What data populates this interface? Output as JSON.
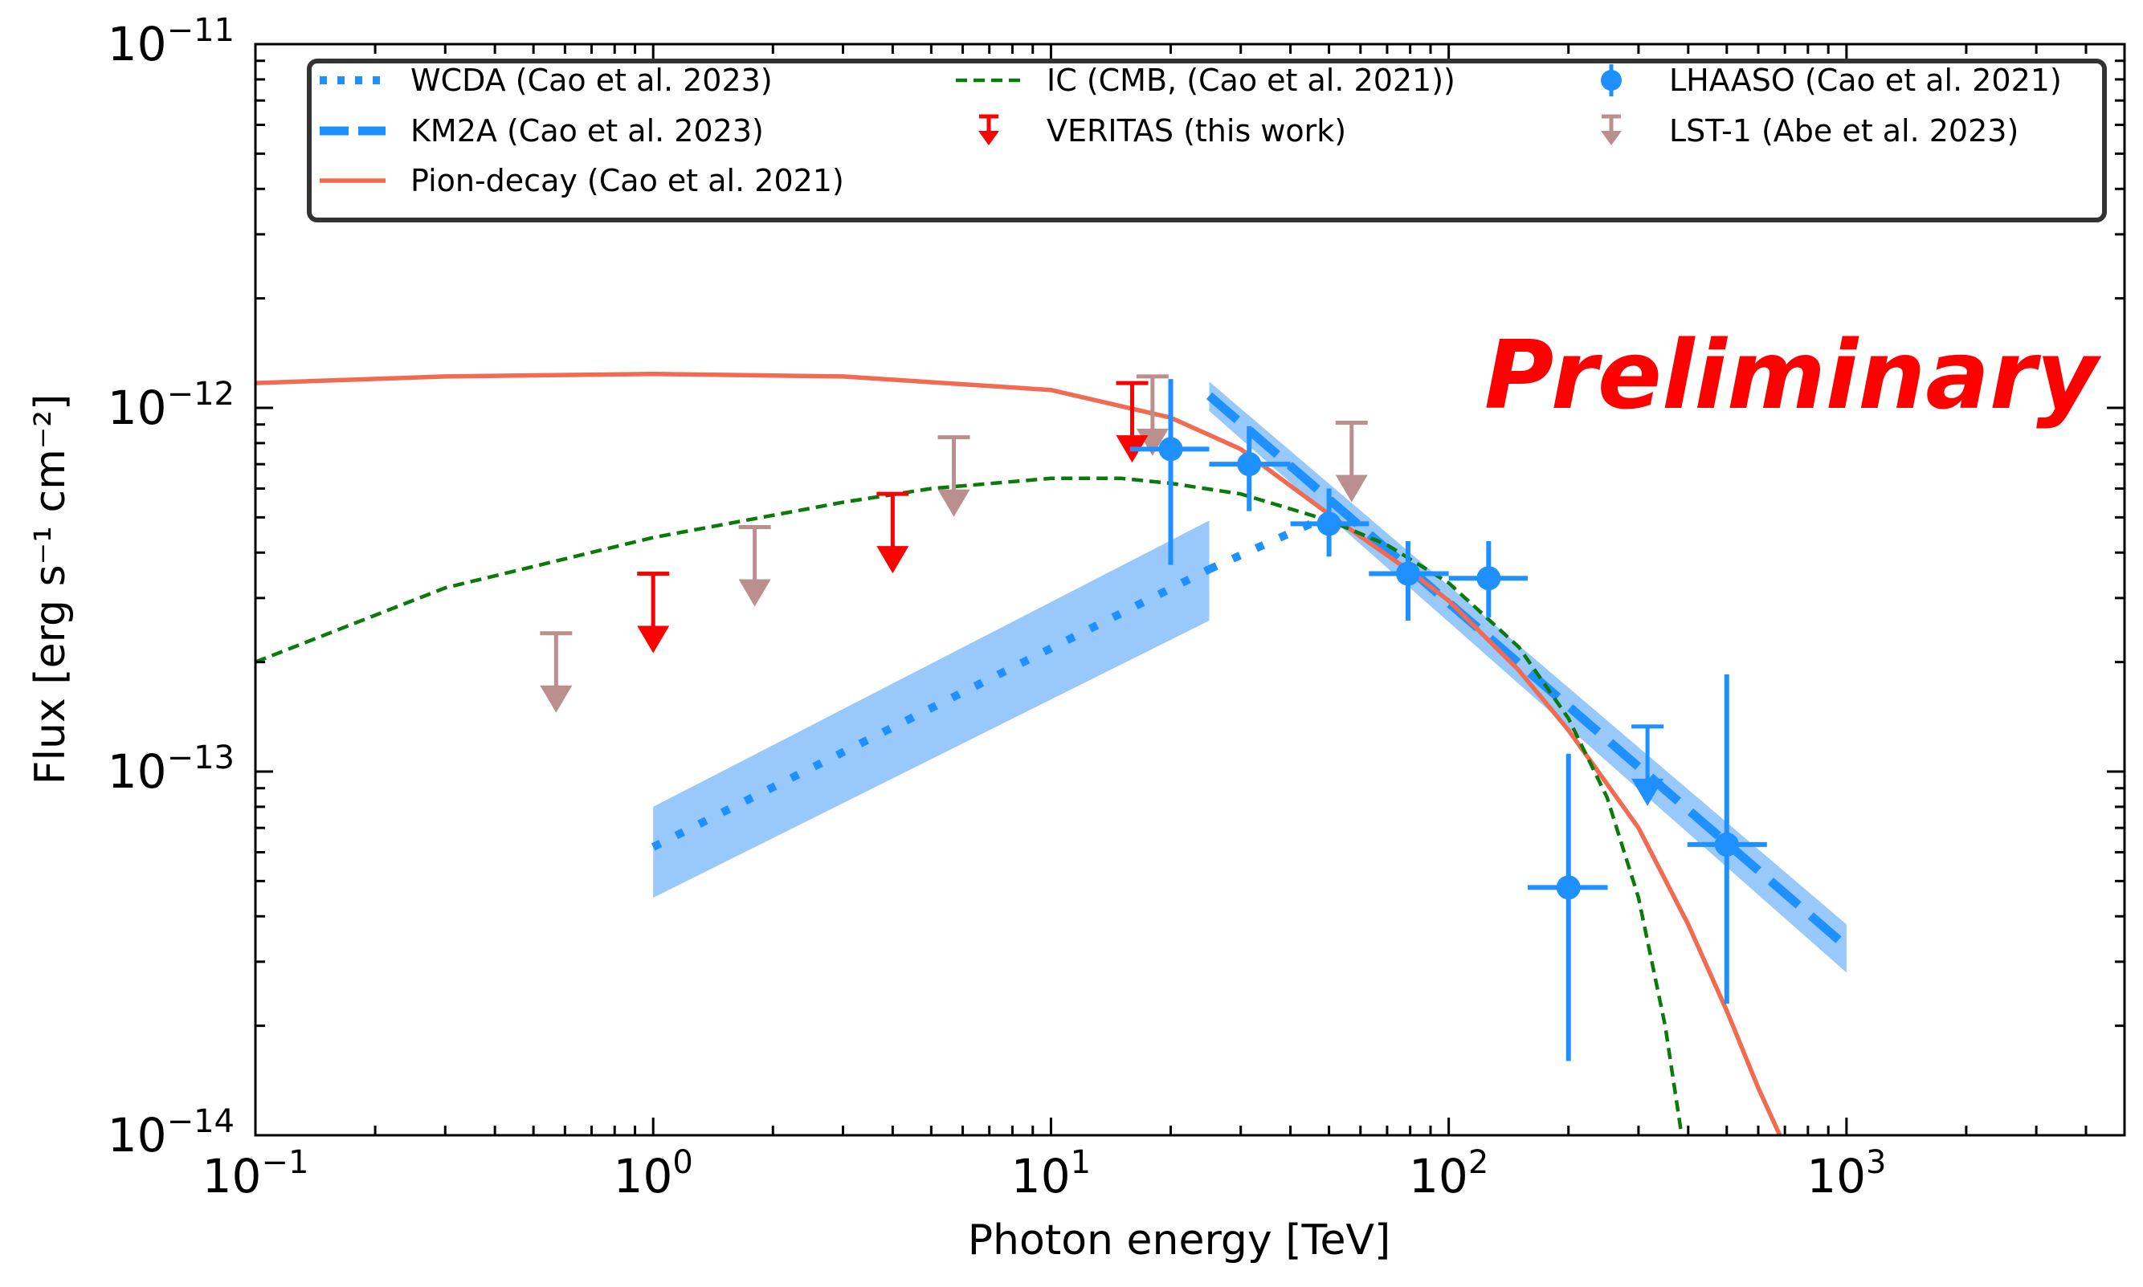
{
  "chart_data": {
    "type": "scatter",
    "xlabel": "Photon energy [TeV]",
    "ylabel": "Flux [erg s⁻¹ cm⁻²]",
    "xscale": "log",
    "yscale": "log",
    "xlim": [
      0.1,
      5000
    ],
    "ylim": [
      1e-14,
      1e-11
    ],
    "x_tick_labels": [
      "10⁻¹",
      "10⁰",
      "10¹",
      "10²",
      "10³"
    ],
    "y_tick_labels": [
      "10⁻¹⁴",
      "10⁻¹³",
      "10⁻¹²",
      "10⁻¹¹"
    ],
    "x_tick_base": "10",
    "x_tick_exponents": [
      "−1",
      "0",
      "1",
      "2",
      "3"
    ],
    "y_tick_base": "10",
    "y_tick_exponents": [
      "−14",
      "−13",
      "−12",
      "−11"
    ],
    "annotation": "Preliminary",
    "annotation_color": "#ff0000",
    "legend_position": "top",
    "series": [
      {
        "name": "WCDA (Cao et al. 2023)",
        "kind": "band-line",
        "style": "dotted",
        "color": "#1e90ff",
        "band_color": "#93c5fb",
        "x": [
          1,
          25
        ],
        "y": [
          6.2e-14,
          3.6e-13
        ],
        "band_low": [
          4.5e-14,
          2.6e-13
        ],
        "band_high": [
          8e-14,
          4.9e-13
        ],
        "extension": {
          "x": [
            25,
            45
          ],
          "y": [
            3.6e-13,
            4.8e-13
          ]
        }
      },
      {
        "name": "KM2A (Cao et al. 2023)",
        "kind": "band-line",
        "style": "dashed",
        "color": "#1e90ff",
        "band_color": "#93c5fb",
        "x": [
          25,
          1000
        ],
        "y": [
          1.08e-12,
          3.3e-14
        ],
        "band_low": [
          9.8e-13,
          2.8e-14
        ],
        "band_high": [
          1.18e-12,
          3.8e-14
        ]
      },
      {
        "name": "Pion-decay (Cao et al. 2021)",
        "kind": "line",
        "style": "solid",
        "color": "#f26a50",
        "x": [
          0.1,
          0.3,
          1,
          3,
          10,
          20,
          30,
          50,
          80,
          100,
          150,
          200,
          300,
          400,
          500,
          600,
          680
        ],
        "y": [
          1.17e-12,
          1.22e-12,
          1.24e-12,
          1.22e-12,
          1.12e-12,
          9.4e-13,
          7.7e-13,
          5.1e-13,
          3.55e-13,
          2.95e-13,
          1.9e-13,
          1.3e-13,
          7e-14,
          3.8e-14,
          2.2e-14,
          1.35e-14,
          1e-14
        ]
      },
      {
        "name": "IC (CMB, (Cao et al. 2021))",
        "kind": "line",
        "style": "dashed-thin",
        "color": "#0a7a0a",
        "x": [
          0.1,
          0.3,
          1,
          3,
          5,
          10,
          15,
          20,
          30,
          50,
          70,
          100,
          150,
          200,
          250,
          300,
          350,
          380,
          385
        ],
        "y": [
          2e-13,
          3.2e-13,
          4.4e-13,
          5.5e-13,
          6e-13,
          6.4e-13,
          6.4e-13,
          6.2e-13,
          5.8e-13,
          4.9e-13,
          4.2e-13,
          3.3e-13,
          2.2e-13,
          1.4e-13,
          8.5e-14,
          4.5e-14,
          2e-14,
          1.1e-14,
          1e-14
        ]
      },
      {
        "name": "VERITAS (this work)",
        "kind": "upper-limits",
        "color": "#ff0000",
        "points": [
          {
            "x": 1.0,
            "y": 3.5e-13
          },
          {
            "x": 4.0,
            "y": 5.8e-13
          },
          {
            "x": 16.0,
            "y": 1.17e-12
          }
        ]
      },
      {
        "name": "LHAASO (Cao et al. 2021)",
        "kind": "errorbar",
        "color": "#1e90ff",
        "points": [
          {
            "x": 20,
            "y": 7.7e-13,
            "xlo": 15.8,
            "xhi": 25,
            "ylo": 3.7e-13,
            "yhi": 1.2e-12
          },
          {
            "x": 31.5,
            "y": 7e-13,
            "xlo": 25,
            "xhi": 40,
            "ylo": 5.2e-13,
            "yhi": 8.9e-13
          },
          {
            "x": 50,
            "y": 4.8e-13,
            "xlo": 40,
            "xhi": 63,
            "ylo": 3.9e-13,
            "yhi": 6e-13
          },
          {
            "x": 79,
            "y": 3.5e-13,
            "xlo": 63,
            "xhi": 100,
            "ylo": 2.6e-13,
            "yhi": 4.3e-13
          },
          {
            "x": 126,
            "y": 3.4e-13,
            "xlo": 100,
            "xhi": 158,
            "ylo": 2.65e-13,
            "yhi": 4.3e-13
          },
          {
            "x": 200,
            "y": 4.8e-14,
            "xlo": 158,
            "xhi": 251,
            "ylo": 1.6e-14,
            "yhi": 1.12e-13
          },
          {
            "x": 500,
            "y": 6.3e-14,
            "xlo": 398,
            "xhi": 631,
            "ylo": 2.3e-14,
            "yhi": 1.85e-13
          }
        ],
        "upper_limits": [
          {
            "x": 316,
            "y": 1.33e-13
          }
        ]
      },
      {
        "name": "LST-1 (Abe et al. 2023)",
        "kind": "upper-limits",
        "color": "#bc8f8f",
        "points": [
          {
            "x": 0.57,
            "y": 2.4e-13
          },
          {
            "x": 1.8,
            "y": 4.7e-13
          },
          {
            "x": 5.7,
            "y": 8.3e-13
          },
          {
            "x": 18.0,
            "y": 1.22e-12
          },
          {
            "x": 57.0,
            "y": 9.1e-13
          }
        ]
      }
    ]
  },
  "legend": {
    "items": [
      {
        "label": "WCDA (Cao et al. 2023)",
        "glyph": "dotted-line",
        "color": "#1e90ff"
      },
      {
        "label": "KM2A (Cao et al. 2023)",
        "glyph": "dashed-line",
        "color": "#1e90ff"
      },
      {
        "label": "Pion-decay (Cao et al. 2021)",
        "glyph": "solid-line",
        "color": "#f26a50"
      },
      {
        "label": "IC (CMB, (Cao et al. 2021))",
        "glyph": "thin-dashed-line",
        "color": "#0a7a0a"
      },
      {
        "label": "VERITAS (this work)",
        "glyph": "upper-limit-marker",
        "color": "#ff0000"
      },
      {
        "label": "LHAASO (Cao et al. 2021)",
        "glyph": "errorbar-marker",
        "color": "#1e90ff"
      },
      {
        "label": "LST-1 (Abe et al. 2023)",
        "glyph": "upper-limit-marker",
        "color": "#bc8f8f"
      }
    ]
  }
}
